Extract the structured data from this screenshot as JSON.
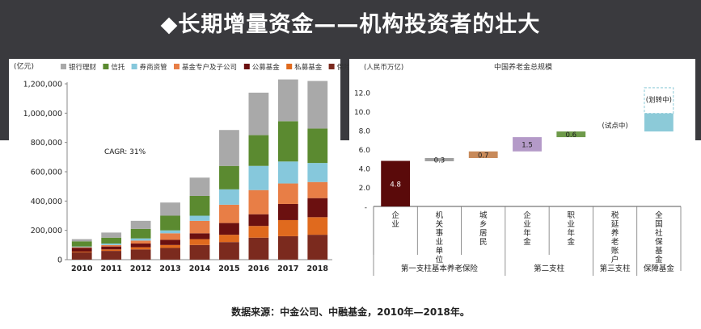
{
  "page": {
    "title": "◆长期增量资金——机构投资者的壮大",
    "source": "数据来源：中金公司、中融基金，2010年—2018年。"
  },
  "chart_data": [
    {
      "type": "bar",
      "stacked": true,
      "unit_label": "(亿元)",
      "annotation": "CAGR: 31%",
      "categories": [
        "2010",
        "2011",
        "2012",
        "2013",
        "2014",
        "2015",
        "2016",
        "2017",
        "2018"
      ],
      "ylim": [
        0,
        1200000
      ],
      "yticks": [
        0,
        200000,
        400000,
        600000,
        800000,
        1000000,
        1200000
      ],
      "ytick_labels": [
        "0",
        "200,000",
        "400,000",
        "600,000",
        "800,000",
        "1,000,000",
        "1,200,000"
      ],
      "legend_position": "top",
      "series": [
        {
          "name": "保险",
          "color": "#7b2a1e",
          "values": [
            50000,
            60000,
            70000,
            80000,
            100000,
            120000,
            150000,
            160000,
            170000
          ]
        },
        {
          "name": "私募基金",
          "color": "#e06a1e",
          "values": [
            5000,
            10000,
            15000,
            20000,
            40000,
            50000,
            80000,
            110000,
            120000
          ]
        },
        {
          "name": "公募基金",
          "color": "#6b1010",
          "values": [
            25000,
            20000,
            25000,
            35000,
            40000,
            80000,
            80000,
            110000,
            130000
          ]
        },
        {
          "name": "基金专户及子公司",
          "color": "#e87e46",
          "values": [
            5000,
            10000,
            20000,
            45000,
            85000,
            125000,
            165000,
            140000,
            110000
          ]
        },
        {
          "name": "券商资管",
          "color": "#86c8dc",
          "values": [
            5000,
            10000,
            15000,
            20000,
            35000,
            105000,
            165000,
            150000,
            130000
          ]
        },
        {
          "name": "信托",
          "color": "#5b8a30",
          "values": [
            35000,
            40000,
            65000,
            100000,
            135000,
            160000,
            210000,
            275000,
            235000
          ]
        },
        {
          "name": "银行理财",
          "color": "#a9a9a9",
          "values": [
            15000,
            35000,
            55000,
            90000,
            125000,
            245000,
            290000,
            285000,
            325000
          ]
        }
      ]
    },
    {
      "type": "waterfall",
      "title": "中国养老金总规模",
      "unit_label": "(人民币万亿)",
      "ylim": [
        0,
        13
      ],
      "yticks": [
        2,
        4,
        6,
        8,
        10,
        12
      ],
      "ytick_labels": [
        "2.0",
        "4.0",
        "6.0",
        "8.0",
        "10.0",
        "12.0"
      ],
      "categories": [
        "企业",
        "机关事业单位",
        "城乡居民",
        "企业年金",
        "职业年金",
        "税延养老账户",
        "全国社保基金"
      ],
      "values": [
        4.8,
        0.3,
        0.7,
        1.5,
        0.6,
        null,
        1.9
      ],
      "value_labels": [
        "4.8",
        "0.3",
        "0.7",
        "1.5",
        "0.6",
        "",
        ""
      ],
      "bases": [
        0,
        4.8,
        5.1,
        5.8,
        7.3,
        null,
        7.9
      ],
      "colors": [
        "#5a0a0a",
        "#a0a0a0",
        "#c88a5a",
        "#b49ac8",
        "#6e9a4a",
        "",
        "#8ccad8"
      ],
      "annotations": [
        {
          "category": "税延养老账户",
          "text": "(试点中)"
        },
        {
          "category": "全国社保基金",
          "text": "(划转中)"
        }
      ],
      "groups": [
        {
          "label": "第一支柱基本养老保险",
          "span": [
            0,
            2
          ]
        },
        {
          "label": "第二支柱",
          "span": [
            3,
            4
          ]
        },
        {
          "label": "第三支柱",
          "span": [
            5,
            5
          ]
        },
        {
          "label": "保障基金",
          "span": [
            6,
            6
          ]
        }
      ]
    }
  ]
}
